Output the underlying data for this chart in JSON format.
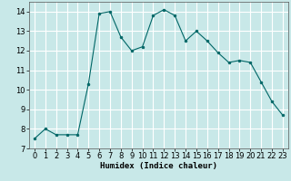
{
  "x": [
    0,
    1,
    2,
    3,
    4,
    5,
    6,
    7,
    8,
    9,
    10,
    11,
    12,
    13,
    14,
    15,
    16,
    17,
    18,
    19,
    20,
    21,
    22,
    23
  ],
  "y": [
    7.5,
    8.0,
    7.7,
    7.7,
    7.7,
    10.3,
    13.9,
    14.0,
    12.7,
    12.0,
    12.2,
    13.8,
    14.1,
    13.8,
    12.5,
    13.0,
    12.5,
    11.9,
    11.4,
    11.5,
    11.4,
    10.4,
    9.4,
    8.7
  ],
  "line_color": "#006666",
  "marker_color": "#006666",
  "bg_color": "#c8e8e8",
  "grid_color": "#ffffff",
  "xlabel": "Humidex (Indice chaleur)",
  "xlim": [
    -0.5,
    23.5
  ],
  "ylim": [
    7,
    14.5
  ],
  "yticks": [
    7,
    8,
    9,
    10,
    11,
    12,
    13,
    14
  ],
  "xticks": [
    0,
    1,
    2,
    3,
    4,
    5,
    6,
    7,
    8,
    9,
    10,
    11,
    12,
    13,
    14,
    15,
    16,
    17,
    18,
    19,
    20,
    21,
    22,
    23
  ],
  "label_fontsize": 6.5,
  "tick_fontsize": 6.0
}
